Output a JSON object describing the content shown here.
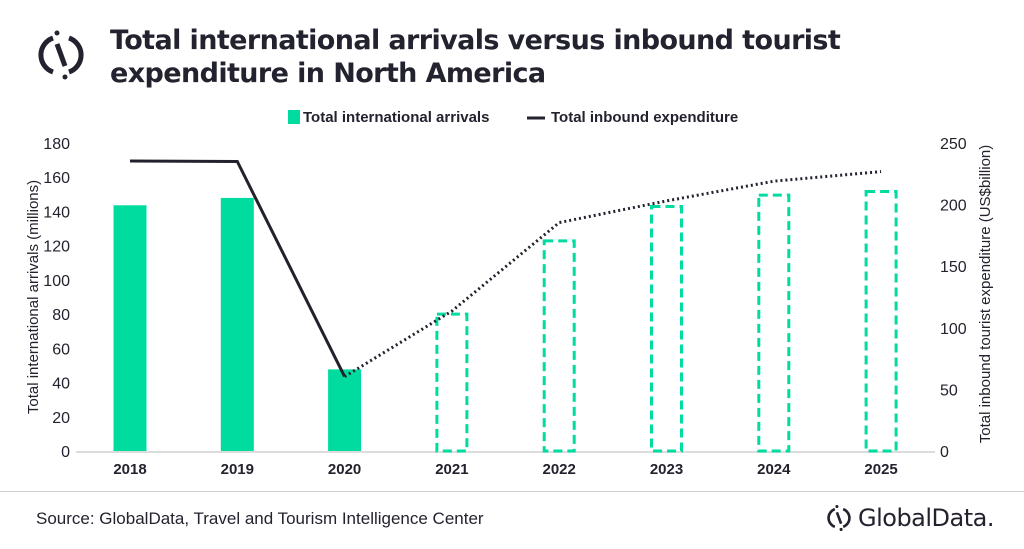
{
  "header": {
    "title": "Total international arrivals versus inbound tourist expenditure in North America"
  },
  "footer": {
    "source": "Source: GlobalData, Travel and Tourism Intelligence Center",
    "brand": "GlobalData."
  },
  "chart_data": {
    "type": "bar",
    "title": "Total international arrivals versus inbound tourist expenditure in North America",
    "categories": [
      "2018",
      "2019",
      "2020",
      "2021",
      "2022",
      "2023",
      "2024",
      "2025"
    ],
    "forecast_from": "2021",
    "legend_position": "top",
    "grid": false,
    "series": [
      {
        "name": "Total international arrivals",
        "type": "bar",
        "axis": "left",
        "color": "#00dca0",
        "values": [
          143.6,
          147.9,
          47.7,
          80.9,
          123.7,
          143.8,
          150.4,
          152.5
        ]
      },
      {
        "name": "Total inbound expenditure",
        "type": "line",
        "axis": "right",
        "color": "#22222e",
        "values": [
          235.4,
          235,
          60.4,
          113.6,
          185.4,
          203,
          219,
          226.8
        ]
      }
    ],
    "left_axis": {
      "label": "Total international arrivals (millions)",
      "range": [
        0,
        180
      ],
      "ticks": [
        "0",
        "20",
        "40",
        "60",
        "80",
        "100",
        "120",
        "140",
        "160",
        "180"
      ]
    },
    "right_axis": {
      "label": "Total inbound tourist expenditure (US$billion)",
      "range": [
        0,
        250
      ],
      "ticks": [
        "0",
        "50",
        "100",
        "150",
        "200",
        "250"
      ]
    }
  }
}
